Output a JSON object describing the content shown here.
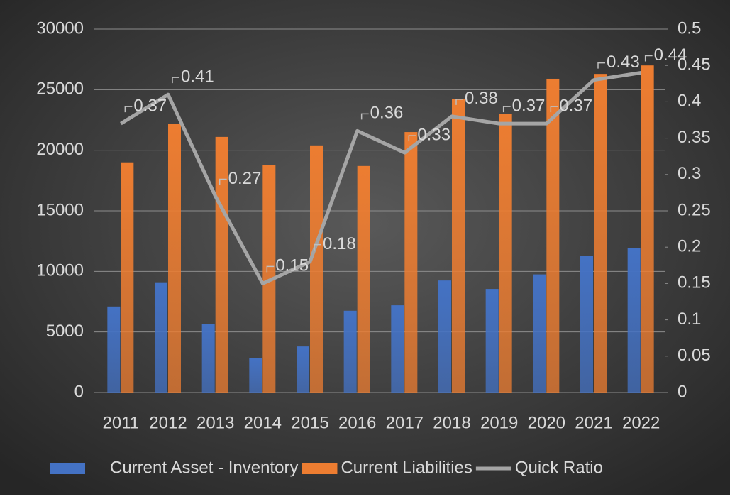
{
  "chart_data": {
    "type": "bar",
    "categories": [
      "2011",
      "2012",
      "2013",
      "2014",
      "2015",
      "2016",
      "2017",
      "2018",
      "2019",
      "2020",
      "2021",
      "2022"
    ],
    "series": [
      {
        "name": "Current Asset - Inventory",
        "color": "#4472c4",
        "type": "bar",
        "values": [
          7100,
          9100,
          5650,
          2850,
          3800,
          6750,
          7200,
          9250,
          8550,
          9750,
          11300,
          11900
        ]
      },
      {
        "name": "Current Liabilities",
        "color": "#ed7d31",
        "type": "bar",
        "values": [
          19000,
          22200,
          21100,
          18800,
          20400,
          18700,
          21500,
          24250,
          23000,
          25900,
          26300,
          27000
        ]
      },
      {
        "name": "Quick Ratio",
        "color": "#a5a5a5",
        "type": "line",
        "axis": "y2",
        "values": [
          0.37,
          0.41,
          0.27,
          0.15,
          0.18,
          0.36,
          0.33,
          0.38,
          0.37,
          0.37,
          0.43,
          0.44
        ]
      }
    ],
    "ylim": [
      0,
      30000
    ],
    "yticks": [
      0,
      5000,
      10000,
      15000,
      20000,
      25000,
      30000
    ],
    "y2lim": [
      0,
      0.5
    ],
    "y2ticks": [
      0,
      0.05,
      0.1,
      0.15,
      0.2,
      0.25,
      0.3,
      0.35,
      0.4,
      0.45,
      0.5
    ],
    "grid": true,
    "legend": "bottom"
  }
}
